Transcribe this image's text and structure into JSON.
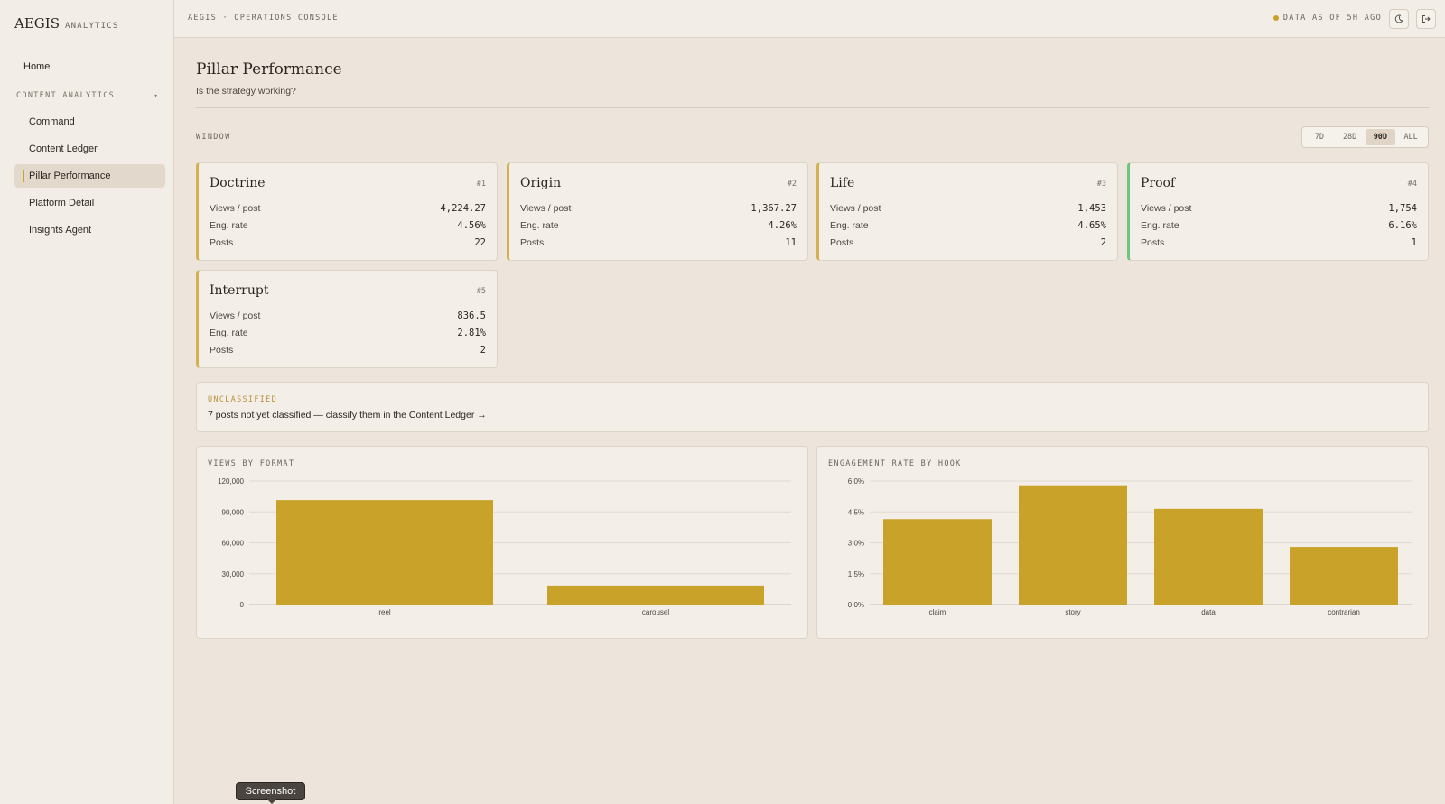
{
  "sidebar": {
    "logo_main": "AEGIS",
    "logo_sub": "ANALYTICS",
    "home": "Home",
    "section_label": "CONTENT ANALYTICS",
    "items": [
      {
        "label": "Command"
      },
      {
        "label": "Content Ledger"
      },
      {
        "label": "Pillar Performance",
        "active": true
      },
      {
        "label": "Platform Detail"
      },
      {
        "label": "Insights Agent"
      }
    ]
  },
  "topbar": {
    "title": "AEGIS · OPERATIONS CONSOLE",
    "status": "DATA AS OF 5H AGO",
    "theme_icon": "moon-icon",
    "logout_icon": "logout-icon"
  },
  "page": {
    "title": "Pillar Performance",
    "subtitle": "Is the strategy working?"
  },
  "window": {
    "label": "WINDOW",
    "options": [
      "7D",
      "28D",
      "90D",
      "ALL"
    ],
    "selected": "90D"
  },
  "pillars": [
    {
      "name": "Doctrine",
      "rank": "#1",
      "views_per_post": "4,224.27",
      "eng_rate": "4.56%",
      "posts": "22"
    },
    {
      "name": "Origin",
      "rank": "#2",
      "views_per_post": "1,367.27",
      "eng_rate": "4.26%",
      "posts": "11"
    },
    {
      "name": "Life",
      "rank": "#3",
      "views_per_post": "1,453",
      "eng_rate": "4.65%",
      "posts": "2"
    },
    {
      "name": "Proof",
      "rank": "#4",
      "views_per_post": "1,754",
      "eng_rate": "6.16%",
      "posts": "1"
    },
    {
      "name": "Interrupt",
      "rank": "#5",
      "views_per_post": "836.5",
      "eng_rate": "2.81%",
      "posts": "2"
    }
  ],
  "metric_labels": {
    "views": "Views / post",
    "eng": "Eng. rate",
    "posts": "Posts"
  },
  "unclassified": {
    "label": "UNCLASSIFIED",
    "text": "7 posts not yet classified — classify them in the Content Ledger →"
  },
  "colors": {
    "bar": "#c9a22a",
    "accent_border": "#d4b050",
    "proof_border": "#6ec67a"
  },
  "chart_data": [
    {
      "type": "bar",
      "title": "VIEWS BY FORMAT",
      "categories": [
        "reel",
        "carousel"
      ],
      "values": [
        101500,
        18500
      ],
      "ylim": [
        0,
        120000
      ],
      "yticks": [
        "0",
        "30,000",
        "60,000",
        "90,000",
        "120,000"
      ],
      "grid": true
    },
    {
      "type": "bar",
      "title": "ENGAGEMENT RATE BY HOOK",
      "categories": [
        "claim",
        "story",
        "data",
        "contrarian"
      ],
      "values": [
        4.15,
        5.75,
        4.65,
        2.8
      ],
      "ylim": [
        0,
        6
      ],
      "yticks": [
        "0.0%",
        "1.5%",
        "3.0%",
        "4.5%",
        "6.0%"
      ],
      "grid": true
    }
  ],
  "tooltip": "Screenshot"
}
